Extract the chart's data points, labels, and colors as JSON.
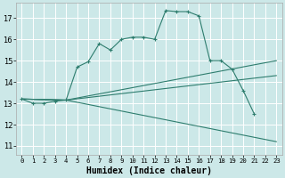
{
  "title": "",
  "xlabel": "Humidex (Indice chaleur)",
  "bg_color": "#cce8e8",
  "grid_color": "#ffffff",
  "line_color": "#2e7d6e",
  "x_ticks": [
    0,
    1,
    2,
    3,
    4,
    5,
    6,
    7,
    8,
    9,
    10,
    11,
    12,
    13,
    14,
    15,
    16,
    17,
    18,
    19,
    20,
    21,
    22,
    23
  ],
  "y_ticks": [
    11,
    12,
    13,
    14,
    15,
    16,
    17
  ],
  "xlim": [
    -0.5,
    23.5
  ],
  "ylim": [
    10.6,
    17.7
  ],
  "lines": [
    {
      "x": [
        0,
        1,
        2,
        3,
        4,
        5,
        6,
        7,
        8,
        9,
        10,
        11,
        12,
        13,
        14,
        15,
        16,
        17,
        18,
        19,
        20,
        21
      ],
      "y": [
        13.2,
        13.0,
        13.0,
        13.1,
        13.15,
        14.7,
        14.95,
        15.8,
        15.5,
        16.0,
        16.1,
        16.1,
        16.0,
        17.35,
        17.3,
        17.3,
        17.1,
        15.0,
        15.0,
        14.6,
        13.6,
        12.5
      ],
      "has_markers": true
    },
    {
      "x": [
        0,
        4,
        23
      ],
      "y": [
        13.2,
        13.15,
        15.0
      ],
      "has_markers": false
    },
    {
      "x": [
        0,
        4,
        23
      ],
      "y": [
        13.2,
        13.15,
        14.3
      ],
      "has_markers": false
    },
    {
      "x": [
        0,
        4,
        23
      ],
      "y": [
        13.2,
        13.15,
        11.2
      ],
      "has_markers": false
    }
  ]
}
